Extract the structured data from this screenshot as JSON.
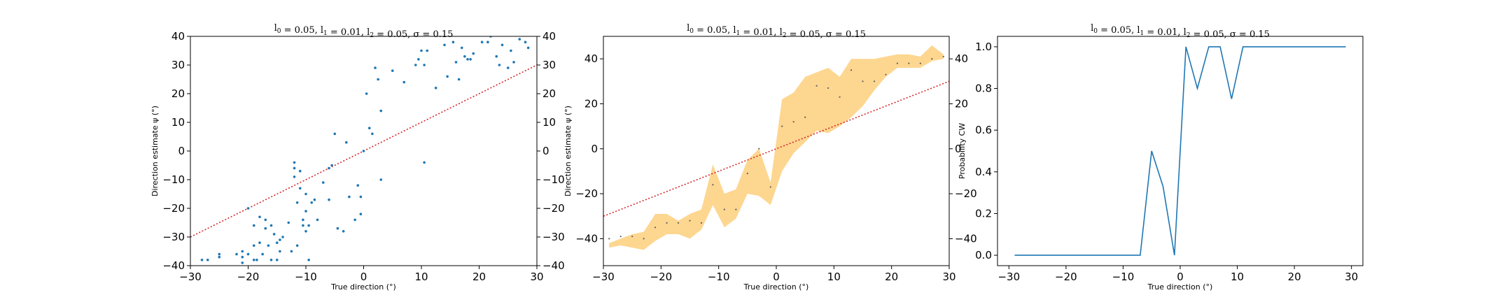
{
  "chart_data": [
    {
      "type": "scatter",
      "title_math": {
        "l0": "0.05",
        "l1": "0.01",
        "l2": "0.05",
        "sigma": "0.15"
      },
      "xlabel": "True direction (°)",
      "ylabel": "Direction estimate ψ (°)",
      "xlim": [
        -30,
        30
      ],
      "ylim": [
        -40,
        40
      ],
      "xticks": [
        "−30",
        "−20",
        "−10",
        "0",
        "10",
        "20",
        "30"
      ],
      "yticks": [
        "−40",
        "−30",
        "−20",
        "−10",
        "0",
        "10",
        "20",
        "30",
        "40"
      ],
      "right_yticks": [
        "−40",
        "−30",
        "−20",
        "−10",
        "0",
        "10",
        "20",
        "30",
        "40"
      ],
      "reference_line": {
        "style": "dotted",
        "color": "#d62728",
        "points": [
          [
            -30,
            -30
          ],
          [
            30,
            30
          ]
        ]
      },
      "marker_color": "#1f77b4",
      "x": [
        -28,
        -27,
        -25,
        -25,
        -22,
        -21,
        -21,
        -21,
        -20,
        -20,
        -19,
        -19,
        -19,
        -18.5,
        -18,
        -18,
        -17.5,
        -17,
        -17,
        -16.5,
        -16,
        -16,
        -15.5,
        -15,
        -15,
        -14.5,
        -14.5,
        -14,
        -13,
        -12.5,
        -12,
        -12,
        -12,
        -11.5,
        -11.5,
        -11,
        -11,
        -10.5,
        -10.5,
        -10,
        -10,
        -10,
        -9.5,
        -9.5,
        -9,
        -8.5,
        -8,
        -7,
        -6,
        -6,
        -5.5,
        -5,
        -4.5,
        -3.5,
        -3,
        -2.5,
        -1.5,
        -1,
        -0.5,
        -0.5,
        0,
        0.5,
        1,
        1.5,
        2,
        2.5,
        3,
        3,
        5,
        7,
        9,
        9.5,
        10,
        10.5,
        10.5,
        11,
        12.5,
        14,
        14.5,
        15.5,
        16,
        16.5,
        17,
        17.5,
        18,
        18.5,
        19,
        20.5,
        21.5,
        22,
        23,
        23.5,
        24,
        25,
        25.5,
        26,
        27,
        28,
        28.5
      ],
      "y": [
        -38,
        -38,
        -37,
        -36,
        -36,
        -39,
        -37,
        -35,
        -36,
        -20,
        -38,
        -33,
        -26,
        -38,
        -32,
        -23,
        -36,
        -27,
        -24,
        -33,
        -38,
        -26,
        -29,
        -38,
        -32,
        -31,
        -35,
        -30,
        -25,
        -35,
        -4,
        -6,
        -9,
        -33,
        -18,
        -13,
        -7,
        -24,
        -26,
        -21,
        -15,
        -28,
        -26,
        -38,
        -18,
        -17,
        -24,
        -11,
        -17,
        -6,
        -5,
        6,
        -27,
        -28,
        3,
        -16,
        -24,
        -12,
        -22,
        -16,
        0,
        20,
        8,
        6,
        29,
        25,
        -10,
        14,
        28,
        24,
        30,
        32,
        35,
        -4,
        30,
        35,
        22,
        37,
        26,
        38,
        31,
        25,
        36,
        33,
        32,
        32,
        34,
        38,
        38,
        40,
        33,
        30,
        37,
        29,
        35,
        31,
        39,
        38,
        36
      ],
      "right_axis": true
    },
    {
      "type": "line",
      "title_math": {
        "l0": "0.05",
        "l1": "0.01",
        "l2": "0.05",
        "sigma": "0.15"
      },
      "xlabel": "True direction (°)",
      "ylabel": "Direction estimate ψ (°)",
      "xlim": [
        -30,
        30
      ],
      "ylim": [
        -52,
        50
      ],
      "xticks": [
        "−30",
        "−20",
        "−10",
        "0",
        "10",
        "20",
        "30"
      ],
      "yticks": [
        "−40",
        "−20",
        "0",
        "20",
        "40"
      ],
      "right_yticks": [
        "−40",
        "−20",
        "0",
        "20",
        "40"
      ],
      "reference_line": {
        "style": "dotted",
        "color": "#d62728",
        "points": [
          [
            -30,
            -30
          ],
          [
            30,
            30
          ]
        ]
      },
      "band_color": "#fdcf7c",
      "x": [
        -29,
        -27,
        -25,
        -23,
        -21,
        -19,
        -17,
        -15,
        -13,
        -11,
        -9,
        -7,
        -5,
        -3,
        -1,
        1,
        3,
        5,
        7,
        9,
        11,
        13,
        15,
        17,
        19,
        21,
        23,
        25,
        27,
        29
      ],
      "mean": [
        -40,
        -39,
        -39,
        -40,
        -35,
        -33,
        -33,
        -32,
        -33,
        -16,
        -27,
        -27,
        -11,
        0,
        -17,
        10,
        12,
        14,
        28,
        27,
        23,
        35,
        30,
        30,
        33,
        38,
        38,
        38,
        40,
        41
      ],
      "lower": [
        -44,
        -43,
        -44,
        -45,
        -41,
        -38,
        -38,
        -40,
        -36,
        -25,
        -35,
        -31,
        -20,
        -21,
        -25,
        -10,
        -2,
        3,
        8,
        7,
        10,
        14,
        19,
        26,
        32,
        36,
        36,
        36,
        39,
        40
      ],
      "upper": [
        -42,
        -40,
        -38,
        -37,
        -29,
        -29,
        -32,
        -29,
        -27,
        -7,
        -20,
        -18,
        -5,
        0,
        -15,
        22,
        25,
        32,
        34,
        36,
        32,
        40,
        40,
        40,
        41,
        42,
        42,
        41,
        46,
        42
      ],
      "right_axis": true
    },
    {
      "type": "line",
      "title_math": {
        "l0": "0.05",
        "l1": "0.01",
        "l2": "0.05",
        "sigma": "0.15"
      },
      "xlabel": "True direction (°)",
      "ylabel": "Probability CW",
      "xlim": [
        -32,
        32
      ],
      "ylim": [
        -0.05,
        1.05
      ],
      "xticks": [
        "−30",
        "−20",
        "−10",
        "0",
        "10",
        "20",
        "30"
      ],
      "yticks": [
        "0.0",
        "0.2",
        "0.4",
        "0.6",
        "0.8",
        "1.0"
      ],
      "line_color": "#1f77b4",
      "x": [
        -29,
        -7,
        -5,
        -3,
        -1,
        1,
        3,
        5,
        7,
        9,
        11,
        29
      ],
      "y": [
        0.0,
        0.0,
        0.5,
        0.33,
        0.0,
        1.0,
        0.8,
        1.0,
        1.0,
        0.75,
        1.0,
        1.0
      ],
      "right_axis": false
    }
  ]
}
